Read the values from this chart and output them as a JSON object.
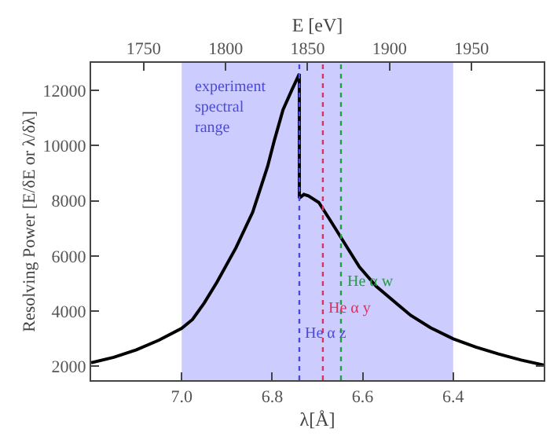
{
  "chart_data": {
    "type": "line",
    "xlabel": "λ[Å]",
    "ylabel": "Resolving Power [E/δE or λ/δλ]",
    "x2label": "E [eV]",
    "xlim": [
      7.2,
      6.2
    ],
    "xticks": [
      {
        "value": 7.0,
        "label": "7.0"
      },
      {
        "value": 6.8,
        "label": "6.8"
      },
      {
        "value": 6.6,
        "label": "6.6"
      },
      {
        "value": 6.4,
        "label": "6.4"
      }
    ],
    "x2lim": [
      1718,
      1994
    ],
    "x2ticks": [
      1750,
      1800,
      1850,
      1900,
      1950
    ],
    "ylim": [
      1500,
      13000
    ],
    "yticks": [
      2000,
      4000,
      6000,
      8000,
      10000,
      12000
    ],
    "grid": false,
    "marker": "none",
    "line_style": "solid",
    "series": [
      {
        "color": "#000000",
        "x": [
          7.2,
          7.15,
          7.1,
          7.05,
          7.0,
          6.976,
          6.95,
          6.922,
          6.88,
          6.843,
          6.81,
          6.795,
          6.776,
          6.757,
          6.74,
          6.74,
          6.73,
          6.72,
          6.697,
          6.67,
          6.64,
          6.607,
          6.57,
          6.494,
          6.45,
          6.4,
          6.35,
          6.3,
          6.25,
          6.2
        ],
        "values": [
          2130,
          2330,
          2600,
          2950,
          3380,
          3700,
          4300,
          5050,
          6300,
          7590,
          9250,
          10200,
          11300,
          12000,
          12600,
          8100,
          8230,
          8180,
          7940,
          7250,
          6460,
          5600,
          4900,
          3850,
          3400,
          3000,
          2700,
          2450,
          2230,
          2050
        ]
      }
    ],
    "bands": [
      {
        "axis": "x",
        "from": 7.0,
        "to": 6.4,
        "color": "#ccccff"
      }
    ],
    "ref_lines": [
      {
        "axis": "x",
        "value": 6.74,
        "label": "He α z",
        "color": "#4a4ae0",
        "line_style": "dotted"
      },
      {
        "axis": "x",
        "value": 6.688,
        "label": "He α y",
        "color": "#e0305a",
        "line_style": "dotted"
      },
      {
        "axis": "x",
        "value": 6.648,
        "label": "He α w",
        "color": "#20a040",
        "line_style": "dotted"
      }
    ],
    "annotations": [
      "experiment\nspectral\nrange"
    ]
  }
}
